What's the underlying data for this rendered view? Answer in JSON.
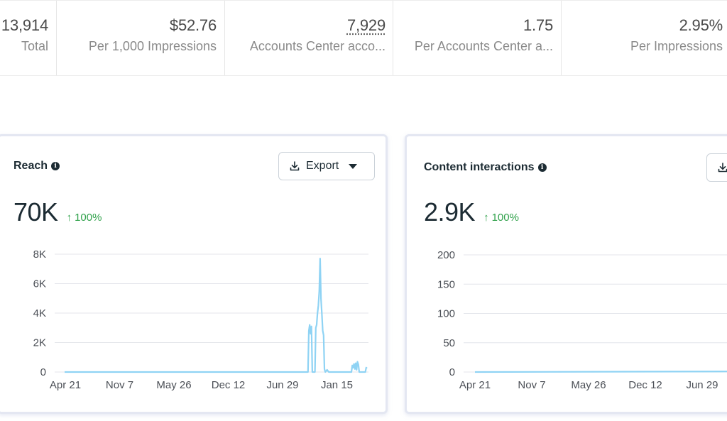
{
  "metrics": [
    {
      "value": "13,914",
      "label": "Total"
    },
    {
      "value": "$52.76",
      "label": "Per 1,000 Impressions"
    },
    {
      "value": "7,929",
      "label": "Accounts Center acco..."
    },
    {
      "value": "1.75",
      "label": "Per Accounts Center a..."
    },
    {
      "value": "2.95%",
      "label": "Per Impressions"
    }
  ],
  "cards": {
    "reach": {
      "title": "Reach",
      "info_icon": "info-icon",
      "export_label": "Export",
      "export_icon": "download-icon",
      "value": "70K",
      "delta": "100%",
      "delta_icon": "arrow-up-icon"
    },
    "content_interactions": {
      "title": "Content interactions",
      "info_icon": "info-icon",
      "export_icon": "download-icon",
      "value": "2.9K",
      "delta": "100%",
      "delta_icon": "arrow-up-icon"
    }
  },
  "colors": {
    "line": "#8fd3f4",
    "delta_positive": "#31a24c",
    "grid": "#e4e6eb"
  },
  "chart_data": [
    {
      "type": "line",
      "title": "Reach",
      "xlabel": "",
      "ylabel": "",
      "x_ticks": [
        "Apr 21",
        "Nov 7",
        "May 26",
        "Dec 12",
        "Jun 29",
        "Jan 15"
      ],
      "y_ticks": [
        "0",
        "2K",
        "4K",
        "6K",
        "8K"
      ],
      "ylim": [
        0,
        8000
      ],
      "grid": true,
      "series": [
        {
          "name": "Reach",
          "x": [
            0,
            280,
            281,
            282,
            283,
            284,
            285,
            286,
            288,
            289,
            290,
            291,
            292,
            293,
            294,
            295,
            296,
            297,
            298,
            299,
            300,
            302,
            304,
            306,
            330,
            331,
            332,
            333,
            334,
            335,
            336,
            337,
            338,
            339,
            340,
            346,
            347,
            348
          ],
          "values": [
            0,
            0,
            2800,
            3200,
            2600,
            3100,
            0,
            0,
            0,
            3000,
            3200,
            4000,
            4500,
            5500,
            7700,
            5000,
            4000,
            2800,
            2500,
            200,
            0,
            150,
            0,
            0,
            0,
            450,
            300,
            550,
            200,
            600,
            150,
            700,
            500,
            0,
            0,
            0,
            300,
            250
          ]
        }
      ]
    },
    {
      "type": "line",
      "title": "Content interactions",
      "xlabel": "",
      "ylabel": "",
      "x_ticks": [
        "Apr 21",
        "Nov 7",
        "May 26",
        "Dec 12",
        "Jun 29"
      ],
      "y_ticks": [
        "0",
        "50",
        "100",
        "150",
        "200"
      ],
      "ylim": [
        0,
        200
      ],
      "grid": true,
      "series": [
        {
          "name": "Content interactions",
          "x": [
            0,
            280
          ],
          "values": [
            0,
            1
          ]
        }
      ]
    }
  ]
}
